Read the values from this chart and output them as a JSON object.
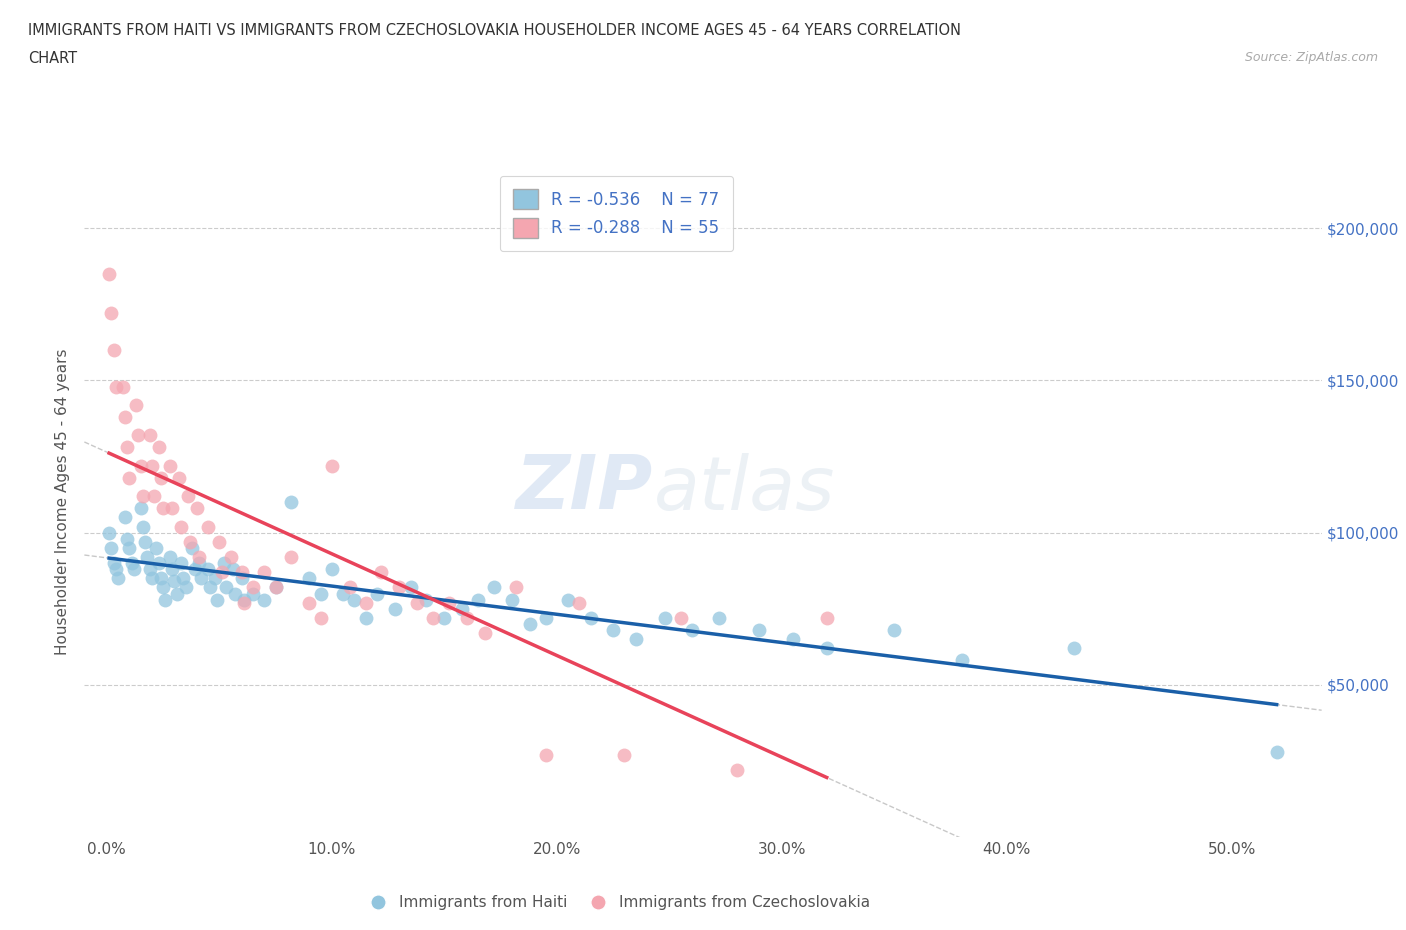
{
  "title_line1": "IMMIGRANTS FROM HAITI VS IMMIGRANTS FROM CZECHOSLOVAKIA HOUSEHOLDER INCOME AGES 45 - 64 YEARS CORRELATION",
  "title_line2": "CHART",
  "source_text": "Source: ZipAtlas.com",
  "ylabel": "Householder Income Ages 45 - 64 years",
  "xlabel_ticks": [
    "0.0%",
    "10.0%",
    "20.0%",
    "30.0%",
    "40.0%",
    "50.0%"
  ],
  "xlabel_vals": [
    0.0,
    0.1,
    0.2,
    0.3,
    0.4,
    0.5
  ],
  "ytick_labels": [
    "$50,000",
    "$100,000",
    "$150,000",
    "$200,000"
  ],
  "ytick_vals": [
    50000,
    100000,
    150000,
    200000
  ],
  "ylim": [
    0,
    220000
  ],
  "xlim": [
    -0.01,
    0.54
  ],
  "haiti_color": "#92c5de",
  "czech_color": "#f4a6b0",
  "haiti_line_color": "#1a5fa8",
  "czech_line_color": "#e8435a",
  "legend_R_haiti": "R = -0.536",
  "legend_N_haiti": "N = 77",
  "legend_R_czech": "R = -0.288",
  "legend_N_czech": "N = 55",
  "legend_label_haiti": "Immigrants from Haiti",
  "legend_label_czech": "Immigrants from Czechoslovakia",
  "watermark_zip": "ZIP",
  "watermark_atlas": "atlas",
  "haiti_x": [
    0.001,
    0.002,
    0.003,
    0.004,
    0.005,
    0.008,
    0.009,
    0.01,
    0.011,
    0.012,
    0.015,
    0.016,
    0.017,
    0.018,
    0.019,
    0.02,
    0.022,
    0.023,
    0.024,
    0.025,
    0.026,
    0.028,
    0.029,
    0.03,
    0.031,
    0.033,
    0.034,
    0.035,
    0.038,
    0.039,
    0.041,
    0.042,
    0.045,
    0.046,
    0.048,
    0.049,
    0.052,
    0.053,
    0.056,
    0.057,
    0.06,
    0.061,
    0.065,
    0.07,
    0.075,
    0.082,
    0.09,
    0.095,
    0.1,
    0.105,
    0.11,
    0.115,
    0.12,
    0.128,
    0.135,
    0.142,
    0.15,
    0.158,
    0.165,
    0.172,
    0.18,
    0.188,
    0.195,
    0.205,
    0.215,
    0.225,
    0.235,
    0.248,
    0.26,
    0.272,
    0.29,
    0.305,
    0.32,
    0.35,
    0.38,
    0.43,
    0.52
  ],
  "haiti_y": [
    100000,
    95000,
    90000,
    88000,
    85000,
    105000,
    98000,
    95000,
    90000,
    88000,
    108000,
    102000,
    97000,
    92000,
    88000,
    85000,
    95000,
    90000,
    85000,
    82000,
    78000,
    92000,
    88000,
    84000,
    80000,
    90000,
    85000,
    82000,
    95000,
    88000,
    90000,
    85000,
    88000,
    82000,
    85000,
    78000,
    90000,
    82000,
    88000,
    80000,
    85000,
    78000,
    80000,
    78000,
    82000,
    110000,
    85000,
    80000,
    88000,
    80000,
    78000,
    72000,
    80000,
    75000,
    82000,
    78000,
    72000,
    75000,
    78000,
    82000,
    78000,
    70000,
    72000,
    78000,
    72000,
    68000,
    65000,
    72000,
    68000,
    72000,
    68000,
    65000,
    62000,
    68000,
    58000,
    62000,
    28000
  ],
  "czech_x": [
    0.001,
    0.002,
    0.003,
    0.004,
    0.007,
    0.008,
    0.009,
    0.01,
    0.013,
    0.014,
    0.015,
    0.016,
    0.019,
    0.02,
    0.021,
    0.023,
    0.024,
    0.025,
    0.028,
    0.029,
    0.032,
    0.033,
    0.036,
    0.037,
    0.04,
    0.041,
    0.045,
    0.05,
    0.051,
    0.055,
    0.06,
    0.061,
    0.065,
    0.07,
    0.075,
    0.082,
    0.09,
    0.095,
    0.1,
    0.108,
    0.115,
    0.122,
    0.13,
    0.138,
    0.145,
    0.152,
    0.16,
    0.168,
    0.182,
    0.195,
    0.21,
    0.23,
    0.255,
    0.28,
    0.32
  ],
  "czech_y": [
    185000,
    172000,
    160000,
    148000,
    148000,
    138000,
    128000,
    118000,
    142000,
    132000,
    122000,
    112000,
    132000,
    122000,
    112000,
    128000,
    118000,
    108000,
    122000,
    108000,
    118000,
    102000,
    112000,
    97000,
    108000,
    92000,
    102000,
    97000,
    87000,
    92000,
    87000,
    77000,
    82000,
    87000,
    82000,
    92000,
    77000,
    72000,
    122000,
    82000,
    77000,
    87000,
    82000,
    77000,
    72000,
    77000,
    72000,
    67000,
    82000,
    27000,
    77000,
    27000,
    72000,
    22000,
    72000
  ]
}
